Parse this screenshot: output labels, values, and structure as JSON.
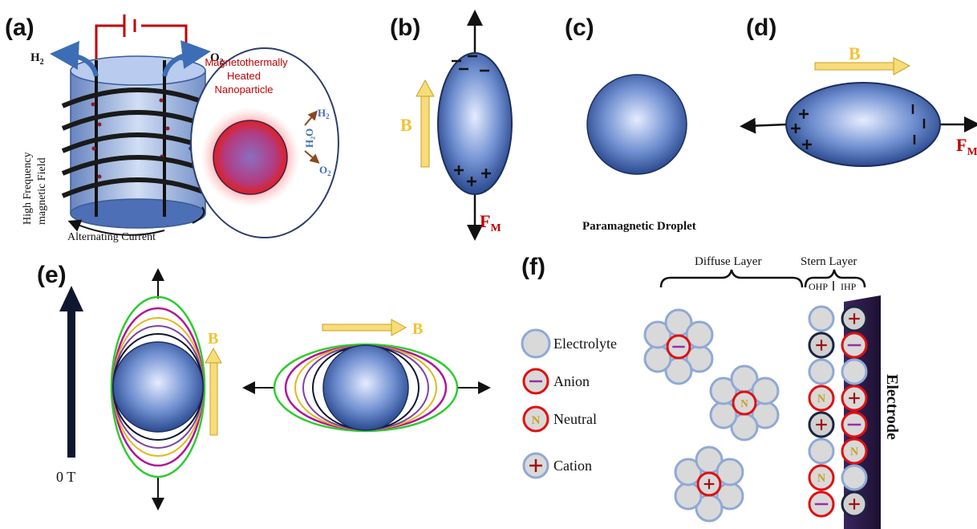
{
  "panels": {
    "a": {
      "label": "(a)",
      "h2_main": "H",
      "h2_sub": "2",
      "o2_main": "O",
      "o2_sub": "2",
      "field_line1": "High Frequency",
      "field_line2": "magnetic Field",
      "current": "Alternating Current",
      "inset_line1": "Magnetothermally",
      "inset_line2": "Heated",
      "inset_line3": "Nanoparticle",
      "inset_h2_main": "H",
      "inset_h2_sub": "2",
      "inset_h2o": "H₂O",
      "inset_o2_main": "O",
      "inset_o2_sub": "2"
    },
    "b": {
      "label": "(b)",
      "field": "B",
      "force_main": "F",
      "force_sub": "M"
    },
    "c": {
      "label": "(c)",
      "caption": "Paramagnetic Droplet"
    },
    "d": {
      "label": "(d)",
      "field": "B",
      "force_main": "F",
      "force_sub": "M"
    },
    "e": {
      "label": "(e)",
      "zero_field": "0 T",
      "field_v": "B",
      "field_h": "B"
    },
    "f": {
      "label": "(f)",
      "diffuse": "Diffuse  Layer",
      "stern": "Stern  Layer",
      "ohp": "OHP",
      "ihp": "IHP",
      "electrode": "Electrode",
      "legend": [
        "Electrolyte",
        "Anion",
        "Neutral",
        "Cation"
      ],
      "neutral_symbol": "N"
    }
  },
  "colors": {
    "accent_red": "#c00000",
    "field_gold": "#f2c230",
    "droplet_light": "#e6ecff",
    "droplet_dark": "#2b4a8f",
    "electrolyte_fill": "#d9d9d9",
    "electrolyte_ring": "#8fa9d6",
    "anion_ring": "#e01010",
    "electrode": "#2a1a4a"
  },
  "icons": [
    "arrow-icon",
    "plus-icon",
    "minus-icon",
    "battery-icon"
  ]
}
